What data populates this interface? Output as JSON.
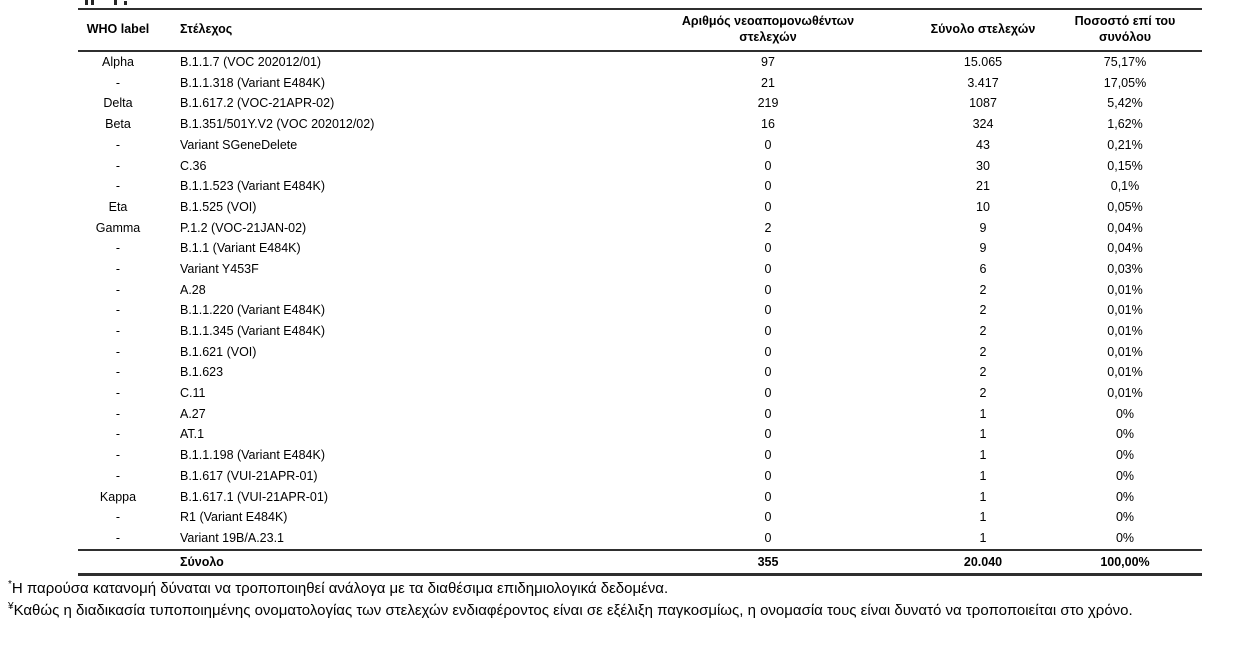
{
  "table": {
    "headers": {
      "who": "WHO label",
      "strain": "Στέλεχος",
      "new_isolates_line1": "Αριθμός νεοαπομονωθέντων",
      "new_isolates_line2": "στελεχών",
      "total": "Σύνολο στελεχών",
      "pct_line1": "Ποσοστό επί του",
      "pct_line2": "συνόλου"
    },
    "rows": [
      [
        "Alpha",
        "B.1.1.7 (VOC 202012/01)",
        "97",
        "15.065",
        "75,17%"
      ],
      [
        "-",
        "B.1.1.318 (Variant E484K)",
        "21",
        "3.417",
        "17,05%"
      ],
      [
        "Delta",
        "B.1.617.2 (VOC-21APR-02)",
        "219",
        "1087",
        "5,42%"
      ],
      [
        "Beta",
        "B.1.351/501Y.V2 (VOC 202012/02)",
        "16",
        "324",
        "1,62%"
      ],
      [
        "-",
        "Variant SGeneDelete",
        "0",
        "43",
        "0,21%"
      ],
      [
        "-",
        "C.36",
        "0",
        "30",
        "0,15%"
      ],
      [
        "-",
        "B.1.1.523 (Variant E484K)",
        "0",
        "21",
        "0,1%"
      ],
      [
        "Eta",
        "B.1.525 (VOI)",
        "0",
        "10",
        "0,05%"
      ],
      [
        "Gamma",
        "P.1.2 (VOC-21JAN-02)",
        "2",
        "9",
        "0,04%"
      ],
      [
        "-",
        "B.1.1 (Variant E484K)",
        "0",
        "9",
        "0,04%"
      ],
      [
        "-",
        "Variant Y453F",
        "0",
        "6",
        "0,03%"
      ],
      [
        "-",
        "A.28",
        "0",
        "2",
        "0,01%"
      ],
      [
        "-",
        "B.1.1.220 (Variant E484K)",
        "0",
        "2",
        "0,01%"
      ],
      [
        "-",
        "B.1.1.345 (Variant E484K)",
        "0",
        "2",
        "0,01%"
      ],
      [
        "-",
        "B.1.621 (VOI)",
        "0",
        "2",
        "0,01%"
      ],
      [
        "-",
        "B.1.623",
        "0",
        "2",
        "0,01%"
      ],
      [
        "-",
        "C.11",
        "0",
        "2",
        "0,01%"
      ],
      [
        "-",
        "A.27",
        "0",
        "1",
        "0%"
      ],
      [
        "-",
        "AT.1",
        "0",
        "1",
        "0%"
      ],
      [
        "-",
        "B.1.1.198 (Variant E484K)",
        "0",
        "1",
        "0%"
      ],
      [
        "-",
        "B.1.617 (VUI-21APR-01)",
        "0",
        "1",
        "0%"
      ],
      [
        "Kappa",
        "B.1.617.1 (VUI-21APR-01)",
        "0",
        "1",
        "0%"
      ],
      [
        "-",
        "R1 (Variant E484K)",
        "0",
        "1",
        "0%"
      ],
      [
        "-",
        "Variant 19B/A.23.1",
        "0",
        "1",
        "0%"
      ]
    ],
    "total_row": {
      "label": "Σύνολο",
      "new": "355",
      "total": "20.040",
      "pct": "100,00%"
    }
  },
  "footnotes": [
    {
      "marker": "*",
      "text": "Η παρούσα κατανομή δύναται να τροποποιηθεί ανάλογα με τα διαθέσιμα επιδημιολογικά δεδομένα."
    },
    {
      "marker": "¥",
      "text": "Καθώς η διαδικασία τυποποιημένης ονοματολογίας των στελεχών ενδιαφέροντος είναι σε εξέλιξη παγκοσμίως, η ονομασία τους είναι δυνατό να τροποποιείται στο χρόνο."
    }
  ]
}
